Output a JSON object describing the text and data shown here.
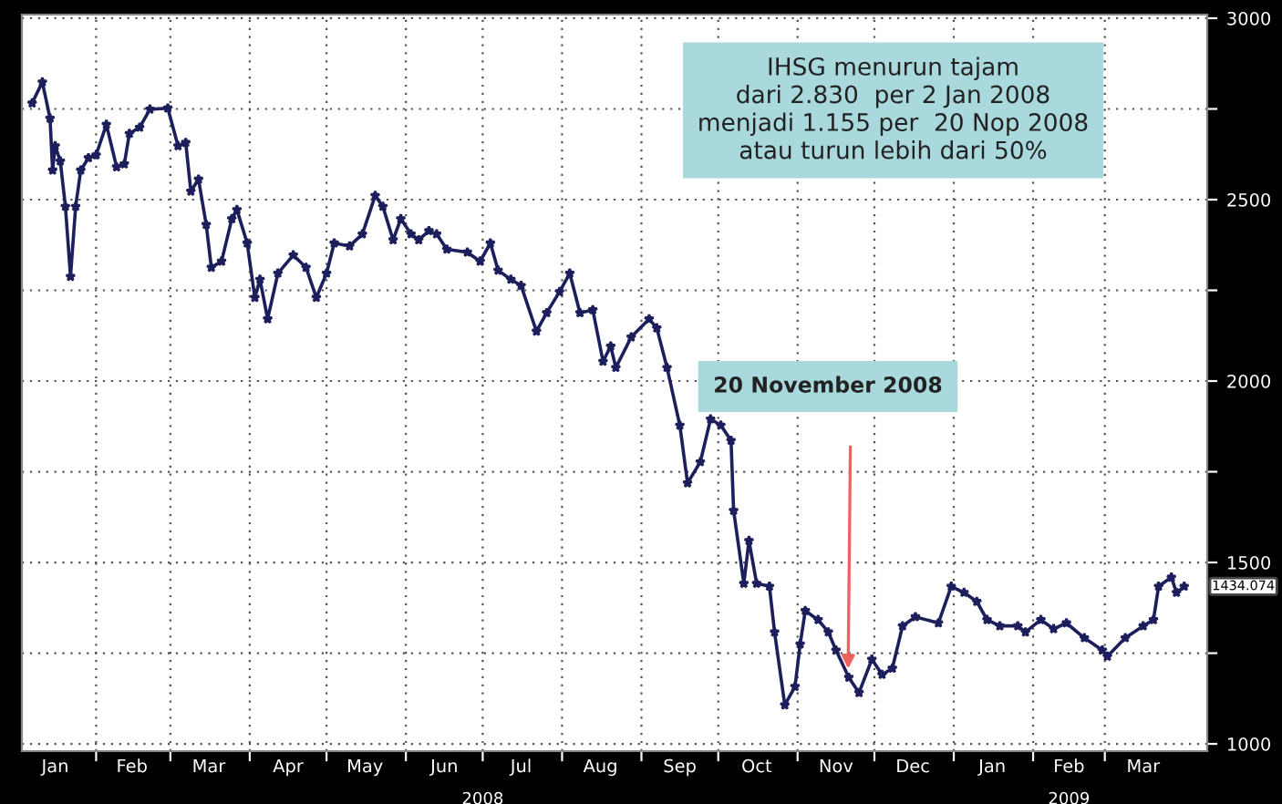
{
  "chart_data": {
    "type": "line",
    "x": [
      "2008-01-07",
      "2008-01-11",
      "2008-01-14",
      "2008-01-15",
      "2008-01-16",
      "2008-01-18",
      "2008-01-20",
      "2008-01-22",
      "2008-01-24",
      "2008-01-26",
      "2008-01-29",
      "2008-02-01",
      "2008-02-05",
      "2008-02-09",
      "2008-02-12",
      "2008-02-14",
      "2008-02-18",
      "2008-02-22",
      "2008-02-29",
      "2008-03-04",
      "2008-03-07",
      "2008-03-09",
      "2008-03-12",
      "2008-03-15",
      "2008-03-17",
      "2008-03-21",
      "2008-03-25",
      "2008-03-27",
      "2008-03-31",
      "2008-04-03",
      "2008-04-05",
      "2008-04-08",
      "2008-04-12",
      "2008-04-18",
      "2008-04-23",
      "2008-04-27",
      "2008-05-01",
      "2008-05-04",
      "2008-05-10",
      "2008-05-15",
      "2008-05-20",
      "2008-05-23",
      "2008-05-27",
      "2008-05-30",
      "2008-06-03",
      "2008-06-06",
      "2008-06-10",
      "2008-06-13",
      "2008-06-17",
      "2008-06-25",
      "2008-06-30",
      "2008-07-04",
      "2008-07-07",
      "2008-07-12",
      "2008-07-16",
      "2008-07-22",
      "2008-07-26",
      "2008-07-31",
      "2008-08-04",
      "2008-08-08",
      "2008-08-13",
      "2008-08-17",
      "2008-08-20",
      "2008-08-22",
      "2008-08-28",
      "2008-09-04",
      "2008-09-07",
      "2008-09-11",
      "2008-09-16",
      "2008-09-19",
      "2008-09-24",
      "2008-09-28",
      "2008-10-02",
      "2008-10-06",
      "2008-10-07",
      "2008-10-11",
      "2008-10-13",
      "2008-10-16",
      "2008-10-21",
      "2008-10-23",
      "2008-10-27",
      "2008-10-31",
      "2008-11-02",
      "2008-11-04",
      "2008-11-09",
      "2008-11-13",
      "2008-11-16",
      "2008-11-21",
      "2008-11-25",
      "2008-11-30",
      "2008-12-04",
      "2008-12-08",
      "2008-12-12",
      "2008-12-17",
      "2008-12-26",
      "2008-12-31",
      "2009-01-05",
      "2009-01-10",
      "2009-01-14",
      "2009-01-19",
      "2009-01-26",
      "2009-01-29",
      "2009-02-04",
      "2009-02-09",
      "2009-02-14",
      "2009-02-21",
      "2009-02-28",
      "2009-03-02",
      "2009-03-09",
      "2009-03-16",
      "2009-03-20",
      "2009-03-22",
      "2009-03-27",
      "2009-03-29",
      "2009-04-01"
    ],
    "series": [
      {
        "color": "#1c1f5c",
        "values": [
          2766,
          2824,
          2724,
          2581,
          2648,
          2606,
          2481,
          2288,
          2481,
          2581,
          2615,
          2623,
          2707,
          2590,
          2598,
          2682,
          2699,
          2749,
          2752,
          2648,
          2657,
          2523,
          2556,
          2431,
          2313,
          2330,
          2447,
          2472,
          2380,
          2230,
          2280,
          2171,
          2297,
          2347,
          2313,
          2230,
          2297,
          2380,
          2372,
          2405,
          2511,
          2481,
          2389,
          2447,
          2405,
          2389,
          2414,
          2405,
          2363,
          2355,
          2330,
          2380,
          2305,
          2280,
          2263,
          2137,
          2188,
          2246,
          2297,
          2188,
          2196,
          2054,
          2096,
          2037,
          2121,
          2171,
          2146,
          2037,
          1878,
          1719,
          1777,
          1895,
          1878,
          1836,
          1643,
          1442,
          1560,
          1442,
          1434,
          1308,
          1107,
          1158,
          1275,
          1367,
          1342,
          1308,
          1258,
          1183,
          1141,
          1233,
          1191,
          1208,
          1325,
          1350,
          1333,
          1434,
          1417,
          1392,
          1342,
          1325,
          1325,
          1308,
          1342,
          1317,
          1333,
          1292,
          1258,
          1241,
          1292,
          1325,
          1342,
          1434,
          1459,
          1417,
          1434
        ]
      }
    ],
    "marker": "star",
    "line_style": "solid",
    "xlim": [
      "2008-01-03",
      "2009-04-10"
    ],
    "xticks": [
      {
        "value": "2008-02-01",
        "label": null
      },
      {
        "value": "2008-03-01",
        "label": null
      },
      {
        "value": "2008-04-01",
        "label": null
      },
      {
        "value": "2008-05-01",
        "label": null
      },
      {
        "value": "2008-06-01",
        "label": null
      },
      {
        "value": "2008-07-01",
        "label": null
      },
      {
        "value": "2008-08-01",
        "label": null
      },
      {
        "value": "2008-09-01",
        "label": null
      },
      {
        "value": "2008-10-01",
        "label": null
      },
      {
        "value": "2008-11-01",
        "label": null
      },
      {
        "value": "2008-12-01",
        "label": null
      },
      {
        "value": "2009-01-01",
        "label": null
      },
      {
        "value": "2009-02-01",
        "label": null
      },
      {
        "value": "2009-03-01",
        "label": null
      },
      {
        "value": "2008-01-16",
        "label": "Jan"
      },
      {
        "value": "2008-02-15",
        "label": "Feb"
      },
      {
        "value": "2008-03-16",
        "label": "Mar"
      },
      {
        "value": "2008-04-16",
        "label": "Apr"
      },
      {
        "value": "2008-05-16",
        "label": "May"
      },
      {
        "value": "2008-06-16",
        "label": "Jun"
      },
      {
        "value": "2008-07-16",
        "label": "Jul"
      },
      {
        "value": "2008-08-16",
        "label": "Aug"
      },
      {
        "value": "2008-09-16",
        "label": "Sep"
      },
      {
        "value": "2008-10-16",
        "label": "Oct"
      },
      {
        "value": "2008-11-16",
        "label": "Nov"
      },
      {
        "value": "2008-12-16",
        "label": "Dec"
      },
      {
        "value": "2009-01-16",
        "label": "Jan"
      },
      {
        "value": "2009-02-15",
        "label": "Feb"
      },
      {
        "value": "2009-03-16",
        "label": "Mar"
      }
    ],
    "ylim": [
      980,
      3010
    ],
    "yticks": [
      1000,
      {
        "value": 1250,
        "label": null
      },
      1500,
      {
        "value": 1750,
        "label": null
      },
      2000,
      {
        "value": 2250,
        "label": null
      },
      2500,
      {
        "value": 2750,
        "label": null
      },
      3000
    ],
    "grid": true,
    "annotations": [
      "IHSG menurun tajam\ndari 2.830  per 2 Jan 2008\nmenjadi 1.155 per  20 Nop 2008\natau turun lebih dari 50%",
      "20 November 2008",
      "2008",
      "2009",
      {
        "text": "1434.074",
        "x": "2009-04-01",
        "y": 1434.074
      }
    ]
  }
}
